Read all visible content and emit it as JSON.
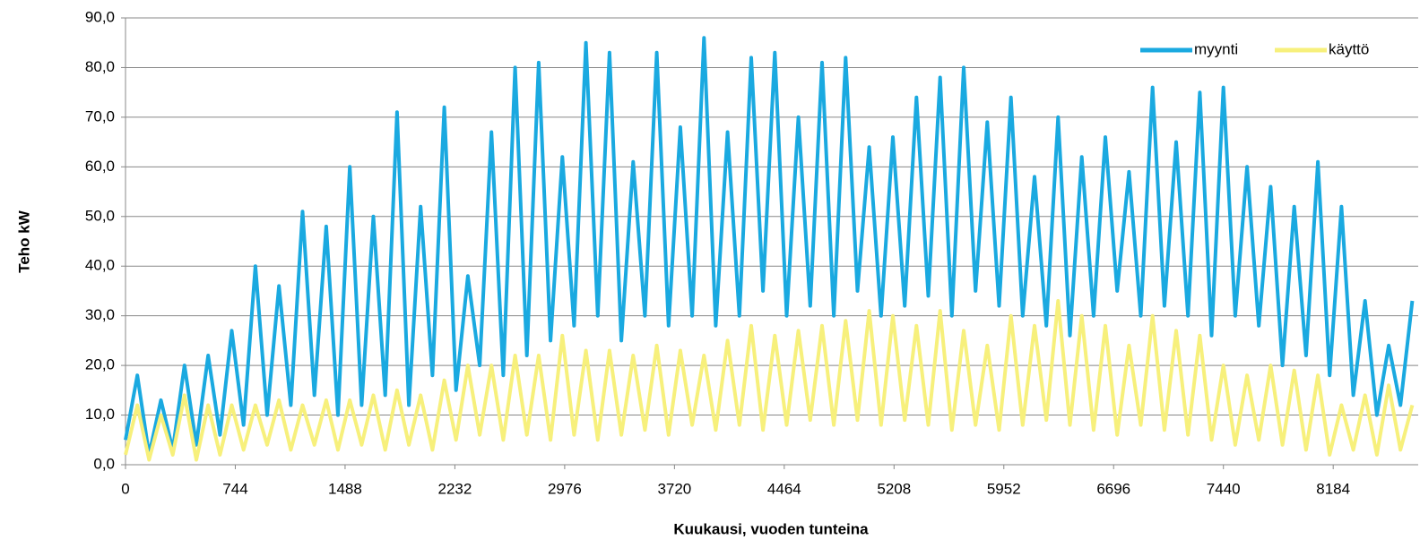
{
  "chart_data": {
    "type": "line",
    "xlabel": "Kuukausi, vuoden tunteina",
    "ylabel": "Teho kW",
    "x": [
      0,
      80,
      160,
      240,
      320,
      400,
      480,
      560,
      640,
      720,
      800,
      880,
      960,
      1040,
      1120,
      1200,
      1280,
      1360,
      1440,
      1520,
      1600,
      1680,
      1760,
      1840,
      1920,
      2000,
      2080,
      2160,
      2240,
      2320,
      2400,
      2480,
      2560,
      2640,
      2720,
      2800,
      2880,
      2960,
      3040,
      3120,
      3200,
      3280,
      3360,
      3440,
      3520,
      3600,
      3680,
      3760,
      3840,
      3920,
      4000,
      4080,
      4160,
      4240,
      4320,
      4400,
      4480,
      4560,
      4640,
      4720,
      4800,
      4880,
      4960,
      5040,
      5120,
      5200,
      5280,
      5360,
      5440,
      5520,
      5600,
      5680,
      5760,
      5840,
      5920,
      6000,
      6080,
      6160,
      6240,
      6320,
      6400,
      6480,
      6560,
      6640,
      6720,
      6800,
      6880,
      6960,
      7040,
      7120,
      7200,
      7280,
      7360,
      7440,
      7520,
      7600,
      7680,
      7760,
      7840,
      7920,
      8000,
      8080,
      8160,
      8240,
      8320,
      8400,
      8480,
      8560,
      8640,
      8720
    ],
    "series": [
      {
        "name": "myynti",
        "color": "#1aa9e0",
        "values": [
          5,
          18,
          2,
          13,
          3,
          20,
          4,
          22,
          6,
          27,
          8,
          40,
          10,
          36,
          12,
          51,
          14,
          48,
          10,
          60,
          12,
          50,
          14,
          71,
          12,
          52,
          18,
          72,
          15,
          38,
          20,
          67,
          18,
          80,
          22,
          81,
          25,
          62,
          28,
          85,
          30,
          83,
          25,
          61,
          30,
          83,
          28,
          68,
          30,
          86,
          28,
          67,
          30,
          82,
          35,
          83,
          30,
          70,
          32,
          81,
          30,
          82,
          35,
          64,
          30,
          66,
          32,
          74,
          34,
          78,
          30,
          80,
          35,
          69,
          32,
          74,
          30,
          58,
          28,
          70,
          26,
          62,
          30,
          66,
          35,
          59,
          30,
          76,
          32,
          65,
          30,
          75,
          26,
          76,
          30,
          60,
          28,
          56,
          20,
          52,
          22,
          61,
          18,
          52,
          14,
          33,
          10,
          24,
          12,
          33
        ]
      },
      {
        "name": "käyttö",
        "color": "#f7f07c",
        "values": [
          2,
          12,
          1,
          10,
          2,
          14,
          1,
          12,
          2,
          12,
          3,
          12,
          4,
          13,
          3,
          12,
          4,
          13,
          3,
          13,
          4,
          14,
          3,
          15,
          4,
          14,
          3,
          17,
          5,
          20,
          6,
          20,
          5,
          22,
          6,
          22,
          5,
          26,
          6,
          23,
          5,
          23,
          6,
          22,
          7,
          24,
          6,
          23,
          8,
          22,
          7,
          25,
          8,
          28,
          7,
          26,
          8,
          27,
          9,
          28,
          8,
          29,
          9,
          31,
          8,
          30,
          9,
          28,
          8,
          31,
          7,
          27,
          8,
          24,
          7,
          30,
          8,
          28,
          9,
          33,
          8,
          30,
          7,
          28,
          6,
          24,
          8,
          30,
          7,
          27,
          6,
          26,
          5,
          20,
          4,
          18,
          5,
          20,
          4,
          19,
          3,
          18,
          2,
          12,
          3,
          14,
          2,
          16,
          3,
          12
        ]
      }
    ],
    "xlim": [
      0,
      8760
    ],
    "xticks": [
      0,
      744,
      1488,
      2232,
      2976,
      3720,
      4464,
      5208,
      5952,
      6696,
      7440,
      8184
    ],
    "ylim": [
      0,
      90
    ],
    "yticks": [
      {
        "value": 0,
        "label": "0,0"
      },
      {
        "value": 10,
        "label": "10,0"
      },
      {
        "value": 20,
        "label": "20,0"
      },
      {
        "value": 30,
        "label": "30,0"
      },
      {
        "value": 40,
        "label": "40,0"
      },
      {
        "value": 50,
        "label": "50,0"
      },
      {
        "value": 60,
        "label": "60,0"
      },
      {
        "value": 70,
        "label": "70,0"
      },
      {
        "value": 80,
        "label": "80,0"
      },
      {
        "value": 90,
        "label": "90,0"
      }
    ],
    "grid": true,
    "legend": "top-right"
  }
}
